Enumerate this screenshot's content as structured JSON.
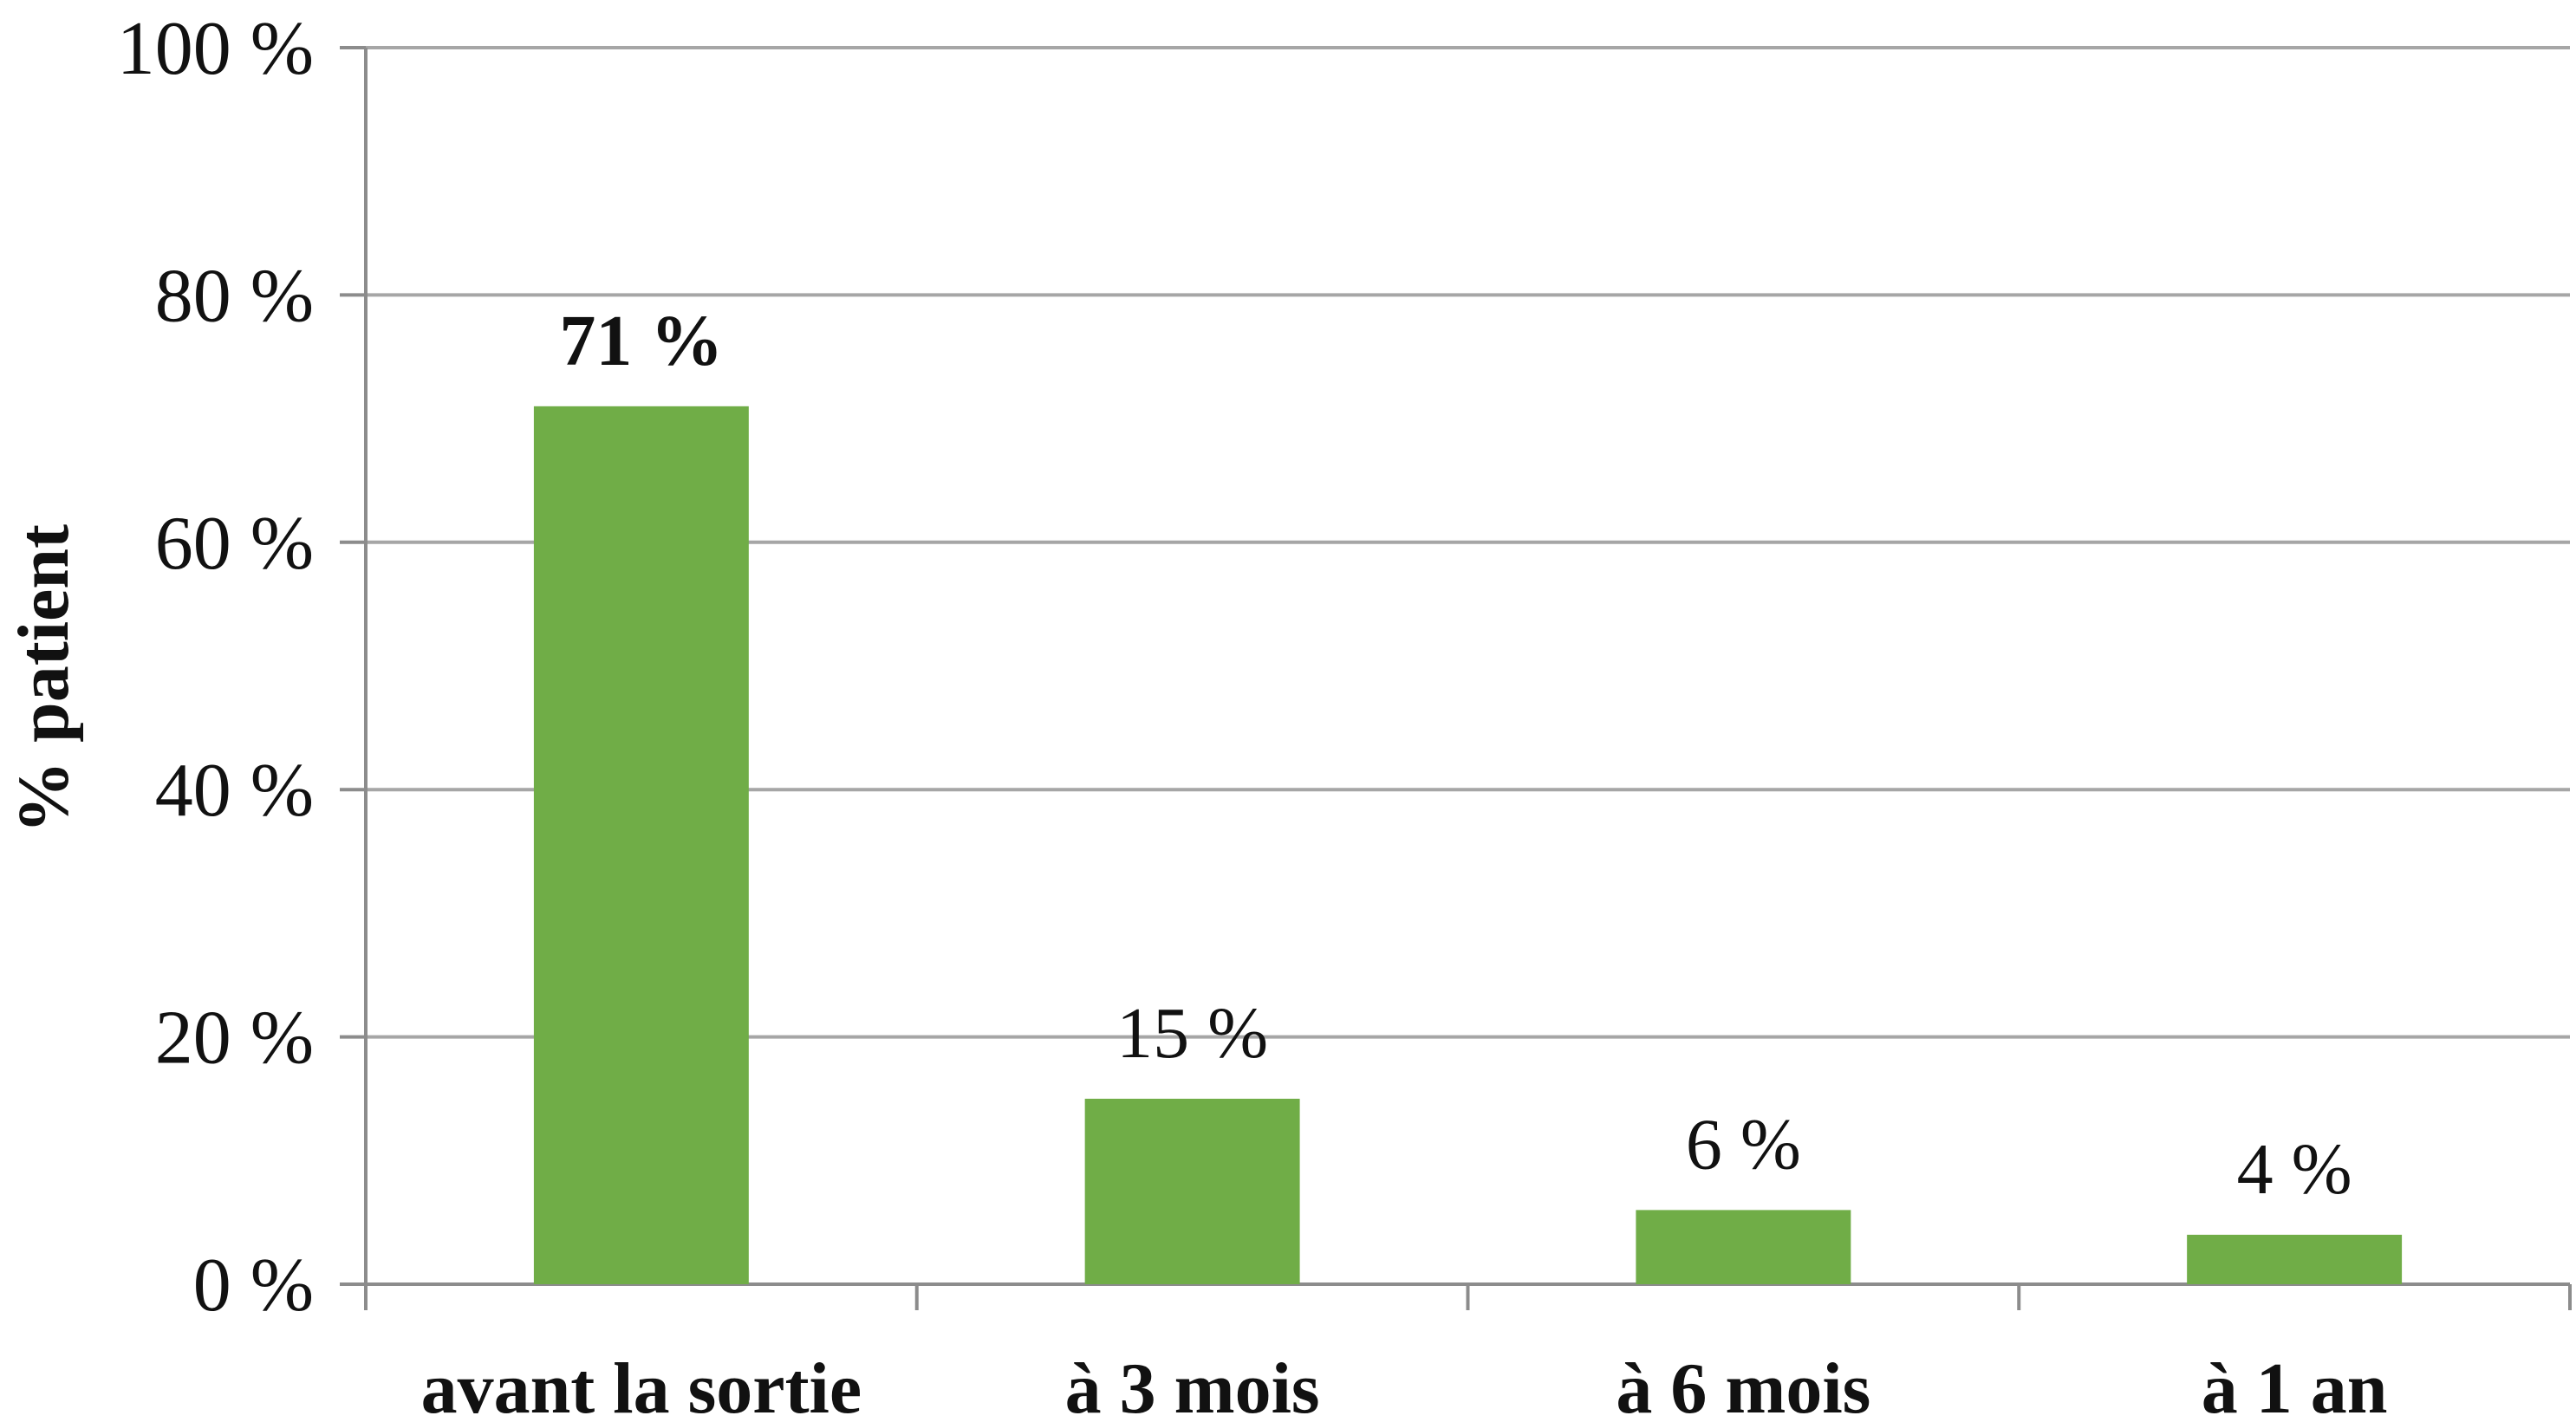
{
  "chart_data": {
    "type": "bar",
    "categories": [
      "avant la sortie",
      "à 3 mois",
      "à 6 mois",
      "à 1 an"
    ],
    "values": [
      71,
      15,
      6,
      4
    ],
    "data_labels": [
      "71 %",
      "15 %",
      "6 %",
      "4 %"
    ],
    "highlighted_label_index": 0,
    "title": "",
    "xlabel": "",
    "ylabel": "% patient",
    "ylim": [
      0,
      100
    ],
    "yticks": [
      0,
      20,
      40,
      60,
      80,
      100
    ],
    "ytick_labels": [
      "0 %",
      "20 %",
      "40 %",
      "60 %",
      "80 %",
      "100 %"
    ],
    "grid": true,
    "legend": "none",
    "bar_color": "#70AD47",
    "grid_color": "#A6A6A6",
    "axis_color": "#8C8C8C",
    "text_color": "#111111"
  }
}
